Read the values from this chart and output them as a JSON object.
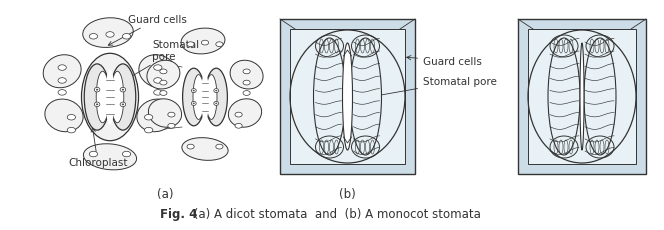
{
  "title": "Fig. 4",
  "caption_bold": "Fig. 4",
  "caption_rest": " (a) A dicot stomata  and  (b) A monocot stomata",
  "label_a": "(a)",
  "label_b": "(b)",
  "ann_guard_left": "Guard cells",
  "ann_stomatal_left": "Stomatal\npore",
  "ann_chloroplast": "Chloroplast",
  "ann_guard_right": "Guard cells",
  "ann_stomatal_right": "Stomatal pore",
  "bg_color": "#ffffff",
  "lc": "#333333",
  "cell_fc": "#f2f2f2",
  "guard_fc": "#e8e8e8",
  "box_outer_fc": "#ccdde8",
  "box_inner_fc": "#e8f2f6"
}
